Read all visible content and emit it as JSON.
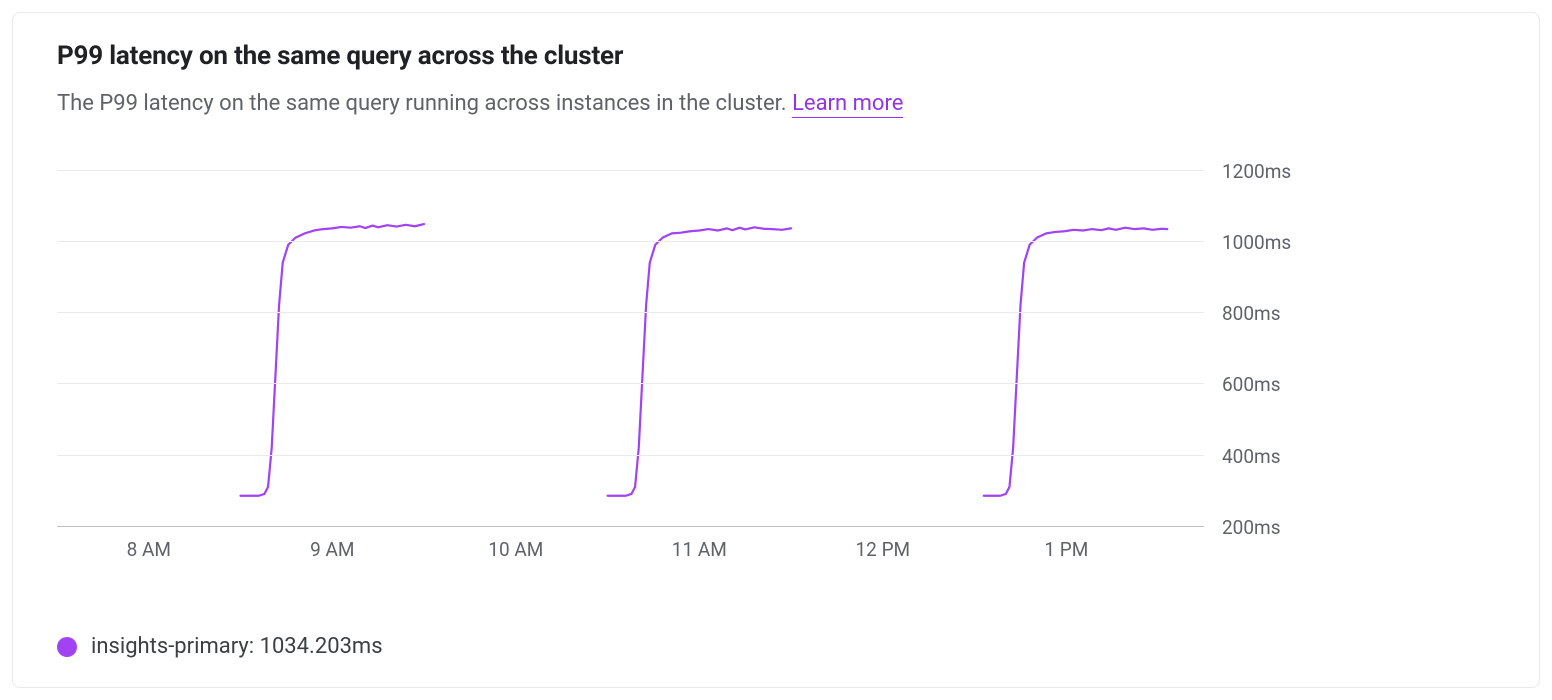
{
  "card": {
    "title": "P99 latency on the same query across the cluster",
    "subtitle": "The P99 latency on the same query running across instances in the cluster. ",
    "learn_more_label": "Learn more",
    "learn_more_color": "#9334e6"
  },
  "chart": {
    "type": "line",
    "background_color": "#ffffff",
    "grid_color": "#e8eaed",
    "axis_color": "#bdc1c6",
    "y": {
      "min": 200,
      "max": 1200,
      "ticks": [
        200,
        400,
        600,
        800,
        1000,
        1200
      ],
      "tick_labels": [
        "200ms",
        "400ms",
        "600ms",
        "800ms",
        "1000ms",
        "1200ms"
      ],
      "label_color": "#5f6368",
      "label_fontsize": 19
    },
    "x": {
      "min": 7.5,
      "max": 13.75,
      "ticks": [
        8,
        9,
        10,
        11,
        12,
        13
      ],
      "tick_labels": [
        "8 AM",
        "9 AM",
        "10 AM",
        "11 AM",
        "12 PM",
        "1 PM"
      ],
      "label_color": "#5f6368",
      "label_fontsize": 19
    },
    "series": [
      {
        "name": "insights-primary",
        "color": "#a142f4",
        "line_width": 2.2,
        "segments": [
          [
            [
              8.5,
              285
            ],
            [
              8.6,
              285
            ],
            [
              8.63,
              290
            ],
            [
              8.65,
              310
            ],
            [
              8.67,
              420
            ],
            [
              8.69,
              620
            ],
            [
              8.71,
              820
            ],
            [
              8.73,
              940
            ],
            [
              8.76,
              990
            ],
            [
              8.8,
              1010
            ],
            [
              8.85,
              1022
            ],
            [
              8.9,
              1030
            ],
            [
              8.95,
              1034
            ],
            [
              9.0,
              1036
            ],
            [
              9.05,
              1040
            ],
            [
              9.1,
              1038
            ],
            [
              9.15,
              1042
            ],
            [
              9.18,
              1037
            ],
            [
              9.22,
              1044
            ],
            [
              9.25,
              1039
            ],
            [
              9.3,
              1045
            ],
            [
              9.35,
              1041
            ],
            [
              9.4,
              1046
            ],
            [
              9.45,
              1042
            ],
            [
              9.5,
              1048
            ]
          ],
          [
            [
              10.5,
              285
            ],
            [
              10.6,
              285
            ],
            [
              10.63,
              290
            ],
            [
              10.65,
              310
            ],
            [
              10.67,
              420
            ],
            [
              10.69,
              620
            ],
            [
              10.71,
              820
            ],
            [
              10.73,
              940
            ],
            [
              10.76,
              990
            ],
            [
              10.8,
              1010
            ],
            [
              10.85,
              1022
            ],
            [
              10.9,
              1024
            ],
            [
              10.95,
              1028
            ],
            [
              11.0,
              1030
            ],
            [
              11.05,
              1034
            ],
            [
              11.1,
              1030
            ],
            [
              11.15,
              1036
            ],
            [
              11.18,
              1031
            ],
            [
              11.22,
              1038
            ],
            [
              11.25,
              1033
            ],
            [
              11.3,
              1039
            ],
            [
              11.35,
              1035
            ],
            [
              11.4,
              1034
            ],
            [
              11.45,
              1032
            ],
            [
              11.5,
              1036
            ]
          ],
          [
            [
              12.55,
              285
            ],
            [
              12.64,
              285
            ],
            [
              12.67,
              290
            ],
            [
              12.69,
              310
            ],
            [
              12.71,
              420
            ],
            [
              12.73,
              620
            ],
            [
              12.75,
              820
            ],
            [
              12.77,
              940
            ],
            [
              12.8,
              990
            ],
            [
              12.84,
              1010
            ],
            [
              12.89,
              1022
            ],
            [
              12.94,
              1026
            ],
            [
              12.99,
              1028
            ],
            [
              13.04,
              1032
            ],
            [
              13.09,
              1030
            ],
            [
              13.14,
              1034
            ],
            [
              13.19,
              1031
            ],
            [
              13.23,
              1036
            ],
            [
              13.27,
              1032
            ],
            [
              13.32,
              1038
            ],
            [
              13.37,
              1034
            ],
            [
              13.42,
              1036
            ],
            [
              13.47,
              1032
            ],
            [
              13.52,
              1035
            ],
            [
              13.55,
              1034
            ]
          ]
        ]
      }
    ]
  },
  "legend": {
    "series_name": "insights-primary",
    "value_label": "1034.203ms",
    "swatch_color": "#a142f4",
    "text_color": "#3c4043"
  }
}
